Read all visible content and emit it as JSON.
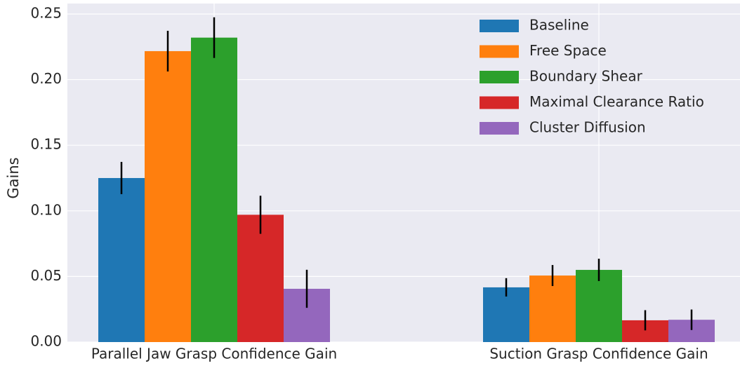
{
  "chart_data": {
    "type": "bar",
    "ylabel": "Gains",
    "categories": [
      "Parallel Jaw Grasp Confidence Gain",
      "Suction Grasp Confidence Gain"
    ],
    "series": [
      {
        "name": "Baseline",
        "color": "#1f77b4",
        "values": [
          0.125,
          0.0417
        ],
        "errors": [
          0.0123,
          0.007
        ]
      },
      {
        "name": "Free Space",
        "color": "#ff7f0e",
        "values": [
          0.2217,
          0.0507
        ],
        "errors": [
          0.0155,
          0.008
        ]
      },
      {
        "name": "Boundary Shear",
        "color": "#2ca02c",
        "values": [
          0.232,
          0.055
        ],
        "errors": [
          0.0155,
          0.0085
        ]
      },
      {
        "name": "Maximal Clearance Ratio",
        "color": "#d62728",
        "values": [
          0.097,
          0.0166
        ],
        "errors": [
          0.0145,
          0.0077
        ]
      },
      {
        "name": "Cluster Diffusion",
        "color": "#9467bd",
        "values": [
          0.0406,
          0.017
        ],
        "errors": [
          0.0145,
          0.0078
        ]
      }
    ],
    "ylim": [
      0,
      0.258
    ],
    "yticks": [
      {
        "value": 0,
        "label": "0.00"
      },
      {
        "value": 0.05,
        "label": "0.05"
      },
      {
        "value": 0.1,
        "label": "0.10"
      },
      {
        "value": 0.15,
        "label": "0.15"
      },
      {
        "value": 0.2,
        "label": "0.20"
      },
      {
        "value": 0.25,
        "label": "0.25"
      }
    ],
    "grid": true,
    "legend": "upper right"
  }
}
